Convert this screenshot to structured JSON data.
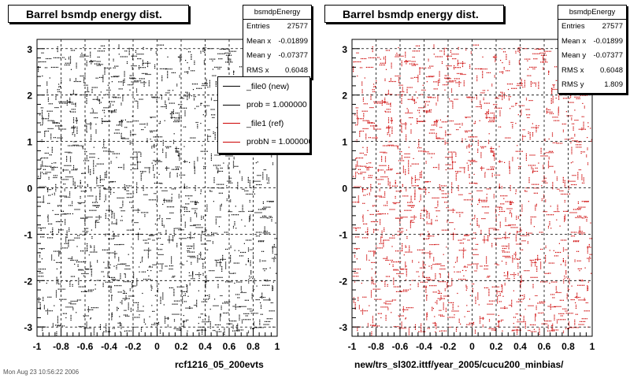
{
  "footer_text": "Mon Aug 23 10:56:22 2006",
  "legend_entries": [
    {
      "label": "_file0 (new)",
      "color": "#000000"
    },
    {
      "label": "prob = 1.000000",
      "color": "#000000"
    },
    {
      "label": "_file1 (ref)",
      "color": "#cc0000"
    },
    {
      "label": "probN = 1.000000",
      "color": "#cc0000"
    }
  ],
  "chart_data": [
    {
      "type": "scatter",
      "title": "Barrel bsmdp energy dist.",
      "xlabel": "rcf1216_05_200evts",
      "ylabel": "",
      "xlim": [
        -1,
        1
      ],
      "ylim": [
        -3.2,
        3.2
      ],
      "grid": true,
      "marker_color": "#000000",
      "x_ticks": [
        "-1",
        "-0.8",
        "-0.6",
        "-0.4",
        "-0.2",
        "0",
        "0.2",
        "0.4",
        "0.6",
        "0.8",
        "1"
      ],
      "y_ticks": [
        "3",
        "2",
        "1",
        "0",
        "-1",
        "-2",
        "-3"
      ],
      "stats": {
        "name": "bsmdpEnergy",
        "rows": [
          {
            "label": "Entries",
            "value": "27577"
          },
          {
            "label": "Mean x",
            "value": "-0.01899"
          },
          {
            "label": "Mean y",
            "value": "-0.07377"
          },
          {
            "label": "RMS x",
            "value": "0.6048"
          }
        ]
      }
    },
    {
      "type": "scatter",
      "title": "Barrel bsmdp energy dist.",
      "xlabel": "new/trs_sl302.ittf/year_2005/cucu200_minbias/",
      "ylabel": "",
      "xlim": [
        -1,
        1
      ],
      "ylim": [
        -3.2,
        3.2
      ],
      "grid": true,
      "marker_color": "#cc0000",
      "x_ticks": [
        "-1",
        "-0.8",
        "-0.6",
        "-0.4",
        "-0.2",
        "0",
        "0.2",
        "0.4",
        "0.6",
        "0.8",
        "1"
      ],
      "y_ticks": [
        "3",
        "2",
        "1",
        "0",
        "-1",
        "-2",
        "-3"
      ],
      "stats": {
        "name": "bsmdpEnergy",
        "rows": [
          {
            "label": "Entries",
            "value": "27577"
          },
          {
            "label": "Mean x",
            "value": "-0.01899"
          },
          {
            "label": "Mean y",
            "value": "-0.07377"
          },
          {
            "label": "RMS x",
            "value": "0.6048"
          },
          {
            "label": "RMS y",
            "value": "1.809"
          }
        ]
      }
    }
  ]
}
